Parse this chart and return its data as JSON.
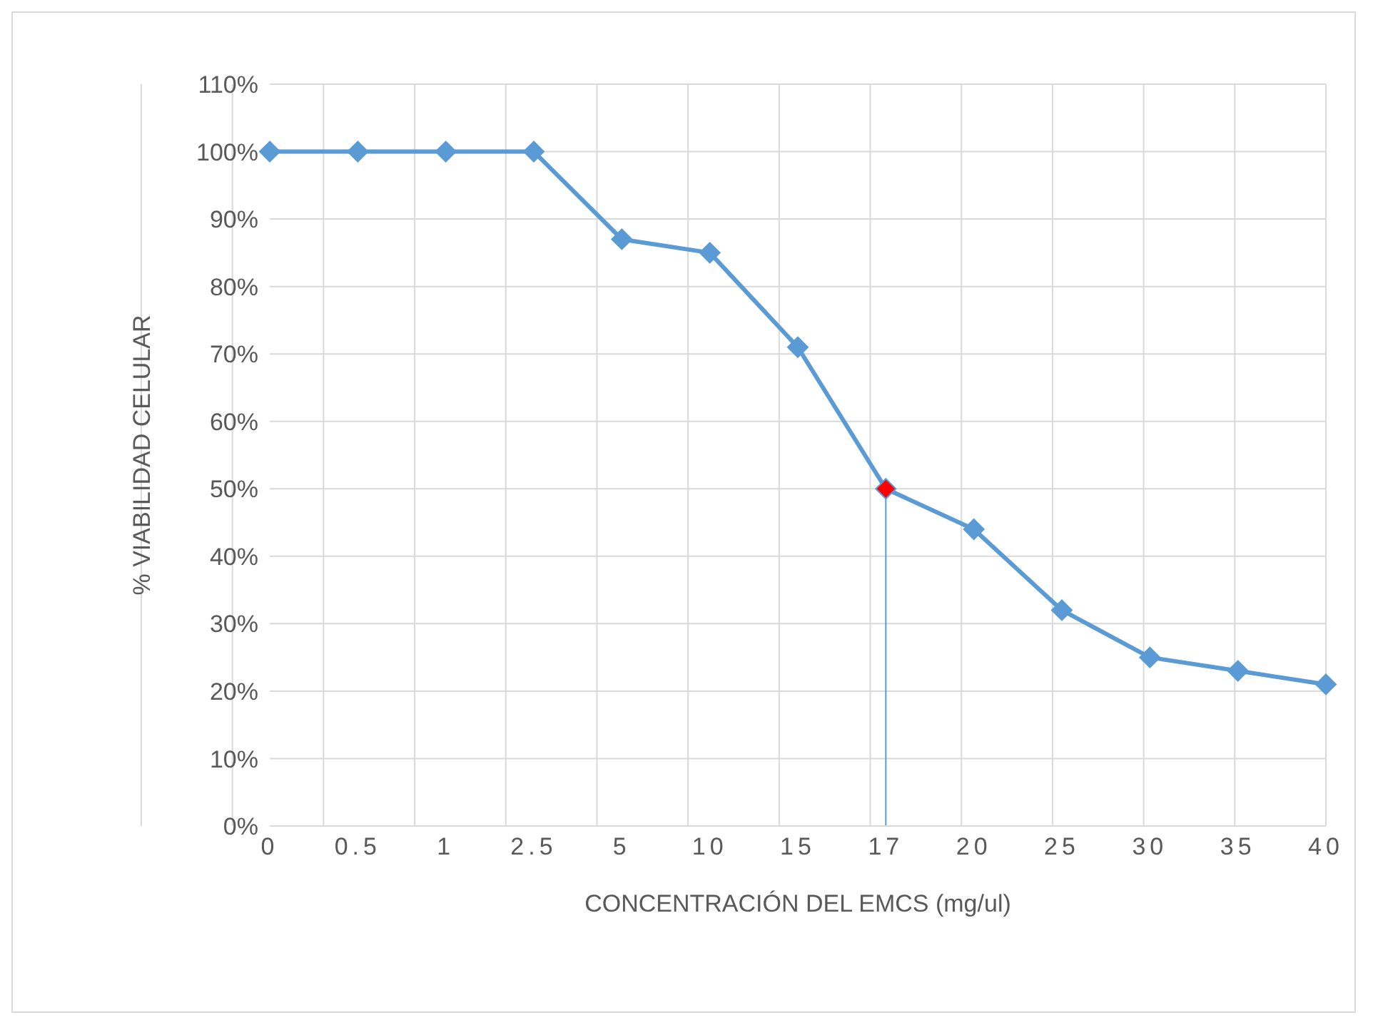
{
  "chart_data": {
    "type": "line",
    "xlabel": "CONCENTRACIÓN DEL EMCS (mg/ul)",
    "ylabel": "% VIABILIDAD CELULAR",
    "categories": [
      "0",
      "0.5",
      "1",
      "2.5",
      "5",
      "10",
      "15",
      "17",
      "20",
      "25",
      "30",
      "35",
      "40"
    ],
    "series": [
      {
        "color": "#5b9bd5",
        "colors": [
          "#5b9bd5",
          "#5b9bd5",
          "#5b9bd5",
          "#5b9bd5",
          "#5b9bd5",
          "#5b9bd5",
          "#5b9bd5",
          "#ff0000",
          "#5b9bd5",
          "#5b9bd5",
          "#5b9bd5",
          "#5b9bd5",
          "#5b9bd5"
        ],
        "values": [
          100,
          100,
          100,
          100,
          87,
          85,
          71,
          50,
          44,
          32,
          25,
          23,
          21
        ]
      }
    ],
    "ylim": [
      0,
      110
    ],
    "yticks": [
      {
        "value": 0,
        "label": "0%"
      },
      {
        "value": 10,
        "label": "10%"
      },
      {
        "value": 20,
        "label": "20%"
      },
      {
        "value": 30,
        "label": "30%"
      },
      {
        "value": 40,
        "label": "40%"
      },
      {
        "value": 50,
        "label": "50%"
      },
      {
        "value": 60,
        "label": "60%"
      },
      {
        "value": 70,
        "label": "70%"
      },
      {
        "value": 80,
        "label": "80%"
      },
      {
        "value": 90,
        "label": "90%"
      },
      {
        "value": 100,
        "label": "100%"
      },
      {
        "value": 110,
        "label": "110%"
      }
    ],
    "ref_lines": [
      {
        "axis": "x",
        "value": "17",
        "color": "#5b9bd5"
      }
    ],
    "grid": true,
    "marker": "diamond",
    "line_style": "solid"
  }
}
